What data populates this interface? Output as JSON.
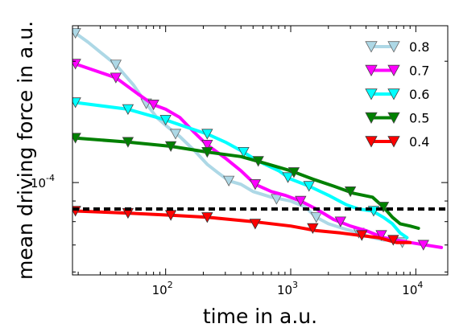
{
  "chart_data": {
    "type": "line",
    "xlabel": "time in a.u.",
    "ylabel": "mean driving force in a.u.",
    "x_scale": "log",
    "y_scale": "log",
    "xlim": [
      18,
      18000
    ],
    "ylim": [
      5.9e-05,
      0.000245
    ],
    "x_ticks": [
      {
        "value": 100,
        "base": "10",
        "exp": "2"
      },
      {
        "value": 1000,
        "base": "10",
        "exp": "3"
      },
      {
        "value": 10000,
        "base": "10",
        "exp": "4"
      }
    ],
    "y_ticks": [
      {
        "value": 0.0001,
        "base": "10",
        "exp": "-4"
      }
    ],
    "grid": false,
    "legend_position": "top-right",
    "reference_line": {
      "style": "dashed",
      "color": "#000000",
      "y": 8.6e-05
    },
    "series": [
      {
        "name": "0.8",
        "color": "#add8e6",
        "marker_edge": "#666666",
        "line": [
          [
            19,
            0.000235
          ],
          [
            24,
            0.000223
          ],
          [
            40,
            0.000196
          ],
          [
            55,
            0.000175
          ],
          [
            70,
            0.000157
          ],
          [
            85,
            0.000145
          ],
          [
            105,
            0.000137
          ],
          [
            130,
            0.00013
          ],
          [
            170,
            0.00012
          ],
          [
            215,
            0.000111
          ],
          [
            260,
            0.000106
          ],
          [
            320,
            0.000101
          ],
          [
            400,
            9.9e-05
          ],
          [
            500,
            9.5e-05
          ],
          [
            700,
            9.2e-05
          ],
          [
            1000,
            9e-05
          ],
          [
            1300,
            8.7e-05
          ],
          [
            1600,
            8.2e-05
          ],
          [
            2000,
            7.9e-05
          ],
          [
            2600,
            7.7e-05
          ],
          [
            3500,
            7.5e-05
          ],
          [
            4500,
            7.3e-05
          ],
          [
            5500,
            7.2e-05
          ],
          [
            6500,
            7.2e-05
          ],
          [
            7800,
            7.1e-05
          ]
        ],
        "markers": [
          [
            19,
            0.000235
          ],
          [
            40,
            0.000196
          ],
          [
            70,
            0.000157
          ],
          [
            120,
            0.000132
          ],
          [
            320,
            0.000101
          ],
          [
            770,
            9.1e-05
          ],
          [
            1600,
            8.2e-05
          ],
          [
            3500,
            7.5e-05
          ],
          [
            7800,
            7.1e-05
          ]
        ]
      },
      {
        "name": "0.7",
        "color": "#ff00ff",
        "marker_edge": "#444444",
        "line": [
          [
            19,
            0.000197
          ],
          [
            40,
            0.000182
          ],
          [
            60,
            0.000166
          ],
          [
            80,
            0.000156
          ],
          [
            100,
            0.000152
          ],
          [
            130,
            0.000145
          ],
          [
            170,
            0.000133
          ],
          [
            215,
            0.000124
          ],
          [
            300,
            0.000115
          ],
          [
            400,
            0.000107
          ],
          [
            520,
            9.9e-05
          ],
          [
            700,
            9.5e-05
          ],
          [
            900,
            9.3e-05
          ],
          [
            1200,
            9e-05
          ],
          [
            1600,
            8.6e-05
          ],
          [
            2200,
            8.1e-05
          ],
          [
            3000,
            7.8e-05
          ],
          [
            4000,
            7.6e-05
          ],
          [
            5500,
            7.3e-05
          ],
          [
            7000,
            7.2e-05
          ],
          [
            9000,
            7.1e-05
          ],
          [
            12000,
            7e-05
          ],
          [
            16000,
            6.9e-05
          ]
        ],
        "markers": [
          [
            19,
            0.000197
          ],
          [
            40,
            0.000182
          ],
          [
            80,
            0.000156
          ],
          [
            215,
            0.000124
          ],
          [
            520,
            9.9e-05
          ],
          [
            1200,
            9e-05
          ],
          [
            2500,
            8e-05
          ],
          [
            5300,
            7.4e-05
          ],
          [
            11500,
            7e-05
          ]
        ]
      },
      {
        "name": "0.6",
        "color": "#00ffff",
        "marker_edge": "#444444",
        "line": [
          [
            19,
            0.000158
          ],
          [
            50,
            0.000152
          ],
          [
            100,
            0.000143
          ],
          [
            150,
            0.000137
          ],
          [
            215,
            0.000132
          ],
          [
            300,
            0.000126
          ],
          [
            400,
            0.00012
          ],
          [
            550,
            0.000113
          ],
          [
            800,
            0.000107
          ],
          [
            1000,
            0.000102
          ],
          [
            1400,
            9.8e-05
          ],
          [
            2000,
            9.3e-05
          ],
          [
            2800,
            8.8e-05
          ],
          [
            3500,
            8.6e-05
          ],
          [
            4500,
            8.5e-05
          ],
          [
            5500,
            8.2e-05
          ],
          [
            6500,
            7.9e-05
          ],
          [
            7500,
            7.5e-05
          ],
          [
            8500,
            7.3e-05
          ]
        ],
        "markers": [
          [
            19,
            0.000158
          ],
          [
            50,
            0.000152
          ],
          [
            100,
            0.000143
          ],
          [
            215,
            0.000132
          ],
          [
            420,
            0.000119
          ],
          [
            950,
            0.000103
          ],
          [
            1400,
            9.8e-05
          ],
          [
            4600,
            8.5e-05
          ]
        ]
      },
      {
        "name": "0.5",
        "color": "#008000",
        "marker_edge": "#444444",
        "line": [
          [
            19,
            0.000129
          ],
          [
            50,
            0.000126
          ],
          [
            110,
            0.000123
          ],
          [
            215,
            0.000119
          ],
          [
            400,
            0.000116
          ],
          [
            600,
            0.000112
          ],
          [
            1000,
            0.000107
          ],
          [
            1500,
            0.000102
          ],
          [
            2200,
            9.8e-05
          ],
          [
            3200,
            9.4e-05
          ],
          [
            4500,
            9.2e-05
          ],
          [
            5500,
            8.7e-05
          ],
          [
            6500,
            8.2e-05
          ],
          [
            7500,
            7.9e-05
          ],
          [
            9000,
            7.8e-05
          ],
          [
            10500,
            7.7e-05
          ]
        ],
        "markers": [
          [
            19,
            0.000129
          ],
          [
            50,
            0.000126
          ],
          [
            110,
            0.000123
          ],
          [
            215,
            0.000119
          ],
          [
            550,
            0.000113
          ],
          [
            1060,
            0.000106
          ],
          [
            3000,
            9.5e-05
          ],
          [
            5500,
            8.7e-05
          ]
        ]
      },
      {
        "name": "0.4",
        "color": "#ff0000",
        "marker_edge": "#333333",
        "line": [
          [
            19,
            8.5e-05
          ],
          [
            50,
            8.4e-05
          ],
          [
            110,
            8.3e-05
          ],
          [
            215,
            8.2e-05
          ],
          [
            500,
            8e-05
          ],
          [
            1000,
            7.8e-05
          ],
          [
            1600,
            7.6e-05
          ],
          [
            2500,
            7.5e-05
          ],
          [
            3500,
            7.4e-05
          ],
          [
            5000,
            7.3e-05
          ],
          [
            7000,
            7.1e-05
          ],
          [
            9000,
            7.1e-05
          ]
        ],
        "markers": [
          [
            19,
            8.5e-05
          ],
          [
            50,
            8.4e-05
          ],
          [
            110,
            8.3e-05
          ],
          [
            215,
            8.2e-05
          ],
          [
            520,
            7.9e-05
          ],
          [
            1500,
            7.7e-05
          ],
          [
            3700,
            7.4e-05
          ],
          [
            6600,
            7.2e-05
          ]
        ]
      }
    ]
  }
}
